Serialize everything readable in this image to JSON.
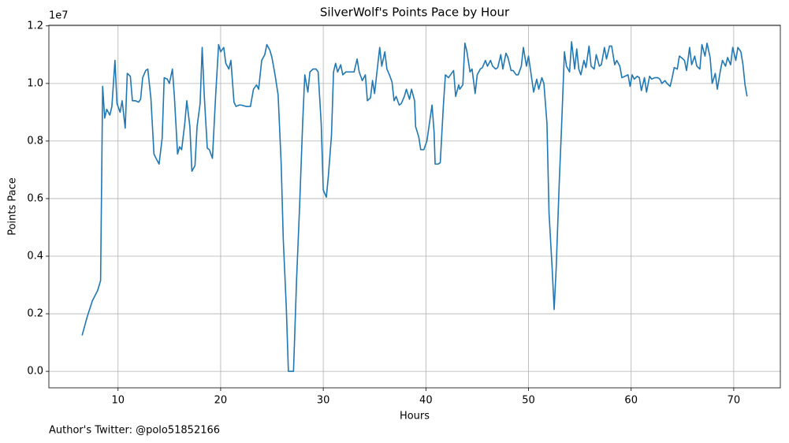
{
  "chart_data": {
    "type": "line",
    "title": "SilverWolf's Points Pace by Hour",
    "xlabel": "Hours",
    "ylabel": "Points Pace",
    "y_offset_label": "1e7",
    "footnote": "Author's Twitter: @polo51852166",
    "color": "#1f77b4",
    "grid": true,
    "xlim": [
      3.26,
      74.54
    ],
    "ylim": [
      -572500,
      12022500
    ],
    "xticks": [
      10,
      20,
      30,
      40,
      50,
      60,
      70
    ],
    "yticks": [
      {
        "value": 0,
        "label": "0.0"
      },
      {
        "value": 2000000,
        "label": "0.2"
      },
      {
        "value": 4000000,
        "label": "0.4"
      },
      {
        "value": 6000000,
        "label": "0.6"
      },
      {
        "value": 8000000,
        "label": "0.8"
      },
      {
        "value": 10000000,
        "label": "1.0"
      },
      {
        "value": 12000000,
        "label": "1.2"
      }
    ],
    "x": [
      6.5,
      7.0,
      7.5,
      8.0,
      8.3,
      8.5,
      8.7,
      8.9,
      9.2,
      9.4,
      9.7,
      9.9,
      10.2,
      10.4,
      10.7,
      10.9,
      11.2,
      11.4,
      11.7,
      12.0,
      12.2,
      12.4,
      12.7,
      12.9,
      13.2,
      13.5,
      13.7,
      14.0,
      14.3,
      14.5,
      14.8,
      15.0,
      15.3,
      15.5,
      15.8,
      16.0,
      16.2,
      16.5,
      16.7,
      17.0,
      17.2,
      17.5,
      17.7,
      18.0,
      18.2,
      18.4,
      18.7,
      18.9,
      19.2,
      19.5,
      19.8,
      20.0,
      20.3,
      20.5,
      20.8,
      21.0,
      21.3,
      21.5,
      21.8,
      22.0,
      22.5,
      22.9,
      23.2,
      23.5,
      23.7,
      24.0,
      24.3,
      24.5,
      24.8,
      25.0,
      25.3,
      25.6,
      25.9,
      26.1,
      26.4,
      26.6,
      26.9,
      27.1,
      27.4,
      27.7,
      28.0,
      28.2,
      28.5,
      28.7,
      29.0,
      29.3,
      29.5,
      29.8,
      30.0,
      30.3,
      30.5,
      30.8,
      31.0,
      31.2,
      31.4,
      31.7,
      31.9,
      32.2,
      32.4,
      32.8,
      33.0,
      33.3,
      33.5,
      33.8,
      34.1,
      34.3,
      34.6,
      34.8,
      35.0,
      35.2,
      35.5,
      35.7,
      36.0,
      36.2,
      36.5,
      36.7,
      36.9,
      37.1,
      37.4,
      37.6,
      37.9,
      38.1,
      38.4,
      38.6,
      38.9,
      39.0,
      39.3,
      39.5,
      39.8,
      40.1,
      40.3,
      40.6,
      40.8,
      40.9,
      41.2,
      41.4,
      41.7,
      41.9,
      42.2,
      42.4,
      42.7,
      42.9,
      43.2,
      43.3,
      43.6,
      43.8,
      44.0,
      44.3,
      44.5,
      44.8,
      45.0,
      45.3,
      45.5,
      45.8,
      46.0,
      46.3,
      46.5,
      46.8,
      47.0,
      47.3,
      47.5,
      47.8,
      48.0,
      48.3,
      48.5,
      48.8,
      49.0,
      49.3,
      49.5,
      49.8,
      50.0,
      50.3,
      50.5,
      50.8,
      51.0,
      51.3,
      51.5,
      51.8,
      52.0,
      52.3,
      52.5,
      52.7,
      53.0,
      53.2,
      53.5,
      53.7,
      54.0,
      54.2,
      54.5,
      54.7,
      54.9,
      55.1,
      55.4,
      55.6,
      55.9,
      56.1,
      56.4,
      56.6,
      56.9,
      57.1,
      57.4,
      57.6,
      57.9,
      58.1,
      58.4,
      58.6,
      58.9,
      59.1,
      59.4,
      59.7,
      59.9,
      60.1,
      60.3,
      60.6,
      60.8,
      61.0,
      61.3,
      61.5,
      61.8,
      62.0,
      62.3,
      62.6,
      62.8,
      63.0,
      63.3,
      63.5,
      63.8,
      64.0,
      64.2,
      64.5,
      64.7,
      64.9,
      65.2,
      65.4,
      65.7,
      65.9,
      66.2,
      66.4,
      66.7,
      66.9,
      67.2,
      67.4,
      67.7,
      67.9,
      68.2,
      68.4,
      68.7,
      68.9,
      69.2,
      69.4,
      69.7,
      69.9,
      70.2,
      70.4,
      70.7,
      70.9,
      71.1,
      71.3
    ],
    "values": [
      1250000,
      1900000,
      2450000,
      2800000,
      3150000,
      9900000,
      8800000,
      9100000,
      8900000,
      9200000,
      10800000,
      9300000,
      9000000,
      9400000,
      8450000,
      10350000,
      10250000,
      9400000,
      9400000,
      9350000,
      9450000,
      10200000,
      10450000,
      10500000,
      9500000,
      7550000,
      7400000,
      7200000,
      8100000,
      10200000,
      10150000,
      10000000,
      10500000,
      9500000,
      7550000,
      7800000,
      7700000,
      8600000,
      9400000,
      8500000,
      6950000,
      7150000,
      8500000,
      9300000,
      11250000,
      9600000,
      7750000,
      7700000,
      7400000,
      9500000,
      11350000,
      11100000,
      11250000,
      10700000,
      10500000,
      10800000,
      9350000,
      9200000,
      9250000,
      9250000,
      9200000,
      9200000,
      9800000,
      9950000,
      9800000,
      10800000,
      11000000,
      11350000,
      11150000,
      10900000,
      10300000,
      9600000,
      7200000,
      4600000,
      2200000,
      0,
      0,
      0,
      3200000,
      5800000,
      8700000,
      10300000,
      9700000,
      10400000,
      10500000,
      10500000,
      10400000,
      8600000,
      6300000,
      6050000,
      6800000,
      8200000,
      10400000,
      10700000,
      10400000,
      10650000,
      10300000,
      10400000,
      10400000,
      10400000,
      10400000,
      10850000,
      10400000,
      10100000,
      10300000,
      9400000,
      9500000,
      10100000,
      9650000,
      10300000,
      11250000,
      10600000,
      11100000,
      10500000,
      10250000,
      10050000,
      9400000,
      9550000,
      9250000,
      9300000,
      9550000,
      9800000,
      9450000,
      9800000,
      9400000,
      8500000,
      8150000,
      7700000,
      7700000,
      8000000,
      8500000,
      9250000,
      8300000,
      7200000,
      7200000,
      7250000,
      9200000,
      10300000,
      10200000,
      10300000,
      10450000,
      9550000,
      9950000,
      9800000,
      9950000,
      11400000,
      11100000,
      10400000,
      10500000,
      9650000,
      10300000,
      10500000,
      10550000,
      10800000,
      10600000,
      10800000,
      10600000,
      10500000,
      10550000,
      11000000,
      10500000,
      11050000,
      10900000,
      10450000,
      10450000,
      10300000,
      10300000,
      10600000,
      11250000,
      10600000,
      10950000,
      10200000,
      9700000,
      10150000,
      9800000,
      10200000,
      10000000,
      8600000,
      5500000,
      3600000,
      2150000,
      3600000,
      6600000,
      8300000,
      11100000,
      10600000,
      10400000,
      11450000,
      10500000,
      11200000,
      10500000,
      10300000,
      10800000,
      10550000,
      11300000,
      10600000,
      10500000,
      11000000,
      10600000,
      10650000,
      11250000,
      10850000,
      11300000,
      11300000,
      10650000,
      10800000,
      10600000,
      10200000,
      10250000,
      10300000,
      9900000,
      10300000,
      10150000,
      10250000,
      10200000,
      9750000,
      10200000,
      9700000,
      10250000,
      10150000,
      10200000,
      10200000,
      10150000,
      10000000,
      10100000,
      10000000,
      9900000,
      10200000,
      10550000,
      10500000,
      10950000,
      10900000,
      10800000,
      10450000,
      11250000,
      10650000,
      10950000,
      10600000,
      10500000,
      11350000,
      10950000,
      11400000,
      10900000,
      10000000,
      10350000,
      9800000,
      10450000,
      10800000,
      10600000,
      10900000,
      10650000,
      11250000,
      10800000,
      11250000,
      11100000,
      10650000,
      9950000,
      9550000
    ]
  }
}
